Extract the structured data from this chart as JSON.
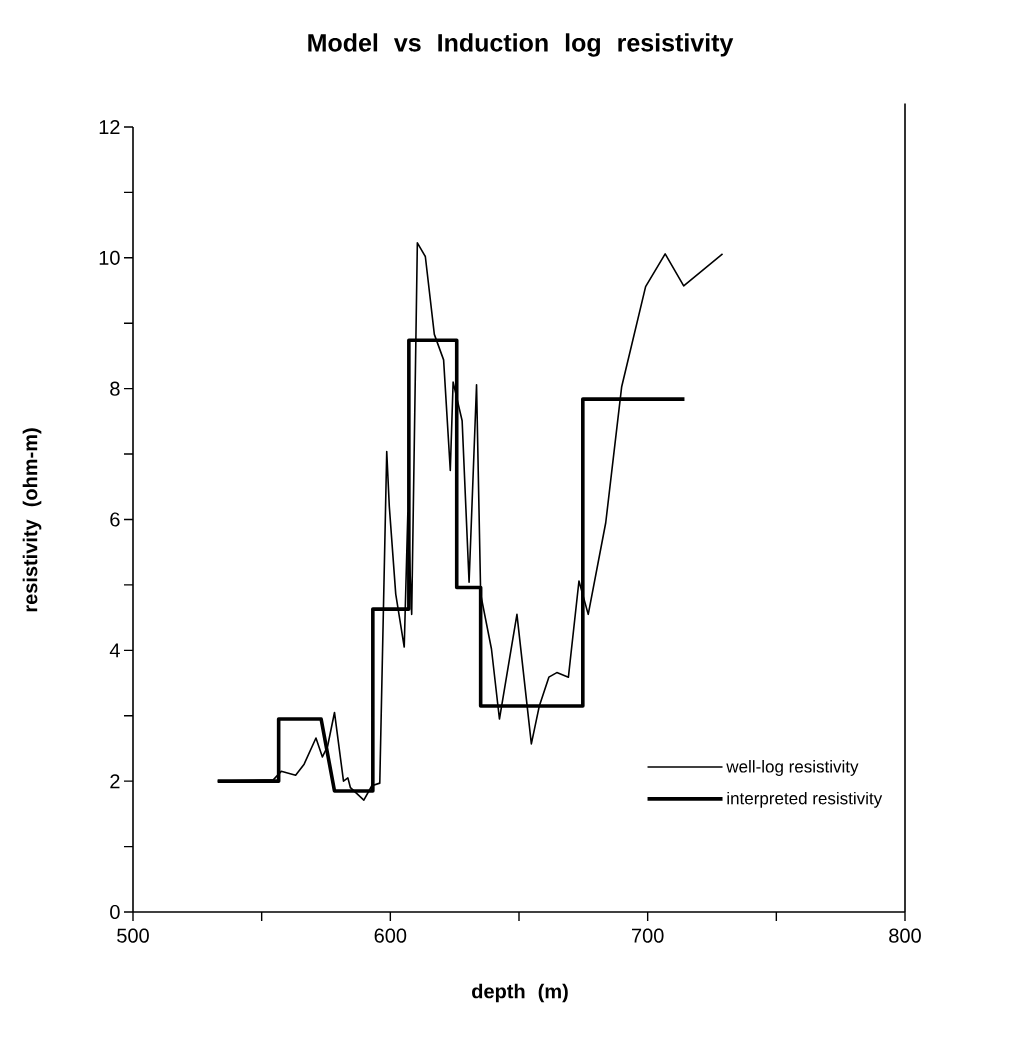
{
  "chart_data": {
    "type": "line",
    "title": "Model vs Induction log resistivity",
    "xlabel": "depth (m)",
    "ylabel": "resistivity (ohm-m)",
    "xlim": [
      500,
      800
    ],
    "ylim": [
      0,
      12
    ],
    "xticks": [
      500,
      {
        "value": 550,
        "label": null
      },
      600,
      {
        "value": 650,
        "label": null
      },
      700,
      {
        "value": 750,
        "label": null
      },
      800
    ],
    "yticks": [
      0,
      {
        "value": 1,
        "label": null
      },
      2,
      {
        "value": 3,
        "label": null
      },
      4,
      {
        "value": 5,
        "label": null
      },
      6,
      {
        "value": 7,
        "label": null
      },
      8,
      {
        "value": 9,
        "label": null
      },
      10,
      {
        "value": 11,
        "label": null
      },
      12
    ],
    "legend": "bottom right",
    "grid": false,
    "marker": "none",
    "line_style": "solid",
    "series": [
      {
        "name": "well-log resistivity",
        "color": "#000000",
        "x": [
          532.9,
          554.5,
          557.6,
          563.2,
          566.5,
          571.1,
          573.6,
          575.6,
          578.3,
          581.8,
          583.5,
          584.5,
          589.7,
          592.8,
          595.9,
          598.6,
          599.6,
          602.1,
          605.4,
          606.8,
          608.3,
          610.5,
          613.6,
          617.1,
          620.7,
          623.3,
          624.4,
          627.9,
          630.6,
          633.5,
          635.1,
          639.3,
          642.4,
          649.2,
          654.8,
          657.9,
          661.6,
          664.7,
          669.2,
          673.3,
          676.9,
          683.7,
          689.9,
          699.2,
          706.8,
          714.0,
          729.1
        ],
        "values": [
          2.0,
          2.02,
          2.15,
          2.09,
          2.26,
          2.66,
          2.37,
          2.53,
          3.05,
          2.0,
          2.05,
          1.9,
          1.71,
          1.93,
          1.97,
          7.04,
          6.2,
          4.86,
          4.05,
          6.1,
          4.55,
          10.23,
          10.02,
          8.83,
          8.44,
          6.75,
          8.1,
          7.51,
          5.04,
          8.06,
          4.86,
          4.02,
          2.95,
          4.55,
          2.57,
          3.15,
          3.59,
          3.66,
          3.59,
          5.06,
          4.55,
          5.95,
          8.03,
          9.56,
          10.06,
          9.57,
          10.06
        ]
      },
      {
        "name": "interpreted resistivity",
        "color": "#000000",
        "x": [
          532.9,
          556.6,
          556.6,
          573.1,
          578.3,
          593.2,
          593.2,
          607.2,
          607.2,
          625.8,
          625.8,
          635.1,
          635.1,
          674.8,
          674.8,
          714.3
        ],
        "values": [
          2.0,
          2.0,
          2.95,
          2.95,
          1.85,
          1.85,
          4.63,
          4.63,
          8.74,
          8.74,
          4.96,
          4.96,
          3.15,
          3.15,
          7.84,
          7.84
        ]
      }
    ]
  }
}
